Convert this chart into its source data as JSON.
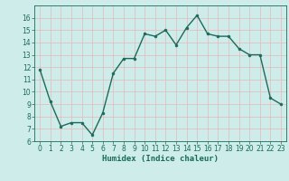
{
  "x": [
    0,
    1,
    2,
    3,
    4,
    5,
    6,
    7,
    8,
    9,
    10,
    11,
    12,
    13,
    14,
    15,
    16,
    17,
    18,
    19,
    20,
    21,
    22,
    23
  ],
  "y": [
    11.8,
    9.2,
    7.2,
    7.5,
    7.5,
    6.5,
    8.3,
    11.5,
    12.7,
    12.7,
    14.7,
    14.5,
    15.0,
    13.8,
    15.2,
    16.2,
    14.7,
    14.5,
    14.5,
    13.5,
    13.0,
    13.0,
    9.5,
    9.0
  ],
  "line_color": "#1a6b5a",
  "marker": "o",
  "marker_size": 2.0,
  "linewidth": 1.0,
  "bg_color": "#cdecea",
  "grid_color": "#e8b8b8",
  "tick_color": "#1a6b5a",
  "xlabel": "Humidex (Indice chaleur)",
  "xlabel_fontsize": 6.5,
  "tick_fontsize": 5.5,
  "ylim": [
    6,
    17
  ],
  "xlim": [
    -0.5,
    23.5
  ],
  "yticks": [
    6,
    7,
    8,
    9,
    10,
    11,
    12,
    13,
    14,
    15,
    16
  ],
  "xticks": [
    0,
    1,
    2,
    3,
    4,
    5,
    6,
    7,
    8,
    9,
    10,
    11,
    12,
    13,
    14,
    15,
    16,
    17,
    18,
    19,
    20,
    21,
    22,
    23
  ]
}
